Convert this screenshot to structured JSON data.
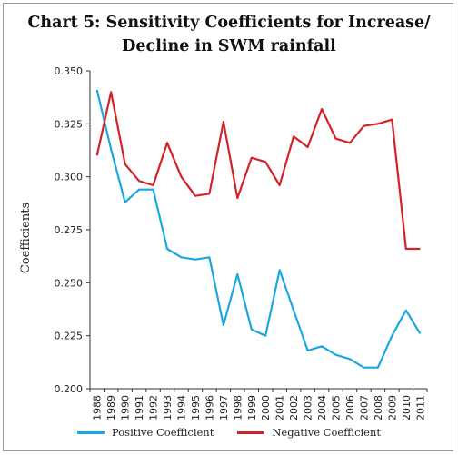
{
  "chart_data": {
    "type": "line",
    "title_line1": "Chart 5: Sensitivity Coefficients for Increase/",
    "title_line2": "Decline in SWM rainfall",
    "xlabel": "",
    "ylabel": "Coefficients",
    "ylim": [
      0.2,
      0.35
    ],
    "yticks": [
      "0.200",
      "0.225",
      "0.250",
      "0.275",
      "0.300",
      "0.325",
      "0.350"
    ],
    "categories": [
      "1988",
      "1989",
      "1990",
      "1991",
      "1992",
      "1993",
      "1994",
      "1995",
      "1996",
      "1997",
      "1998",
      "1999",
      "2000",
      "2001",
      "2002",
      "2003",
      "2004",
      "2005",
      "2006",
      "2007",
      "2008",
      "2009",
      "2010",
      "2011"
    ],
    "series": [
      {
        "name": "Positive Coefficient",
        "color": "#1aa7e0",
        "values": [
          0.341,
          0.313,
          0.288,
          0.294,
          0.294,
          0.266,
          0.262,
          0.261,
          0.262,
          0.23,
          0.254,
          0.228,
          0.225,
          0.256,
          0.237,
          0.218,
          0.22,
          0.216,
          0.214,
          0.21,
          0.21,
          0.225,
          0.237,
          0.226
        ]
      },
      {
        "name": "Negative Coefficient",
        "color": "#d2232a",
        "values": [
          0.31,
          0.34,
          0.306,
          0.298,
          0.296,
          0.316,
          0.3,
          0.291,
          0.292,
          0.326,
          0.29,
          0.309,
          0.307,
          0.296,
          0.319,
          0.314,
          0.332,
          0.318,
          0.316,
          0.324,
          0.325,
          0.327,
          0.266,
          0.266
        ]
      }
    ],
    "grid": false,
    "legend_position": "bottom"
  }
}
